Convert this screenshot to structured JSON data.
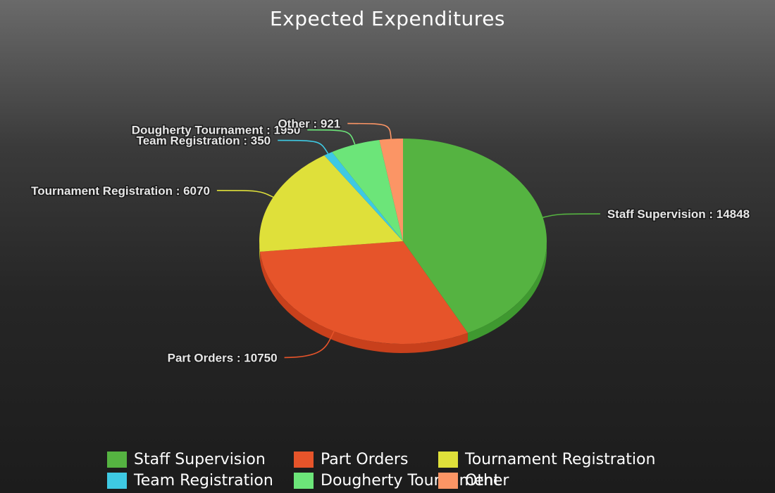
{
  "chart_data": {
    "type": "pie",
    "title": "Expected Expenditures",
    "slices": [
      {
        "name": "Staff Supervision",
        "value": 14848,
        "color": "#55b341",
        "side": "#3f9930",
        "label": "Staff Supervision : 14848"
      },
      {
        "name": "Part Orders",
        "value": 10750,
        "color": "#e6542a",
        "side": "#c8401c",
        "label": "Part Orders : 10750"
      },
      {
        "name": "Tournament Registration",
        "value": 6070,
        "color": "#dfe03a",
        "side": "#b9ba2a",
        "label": "Tournament Registration : 6070"
      },
      {
        "name": "Team Registration",
        "value": 350,
        "color": "#3ec9e3",
        "side": "#2ea8c0",
        "label": "Team Registration : 350"
      },
      {
        "name": "Dougherty Tournament",
        "value": 1950,
        "color": "#6ce579",
        "side": "#53c460",
        "label": "Dougherty Tournament : 1950"
      },
      {
        "name": "Other",
        "value": 921,
        "color": "#fb9565",
        "side": "#dd7a4d",
        "label": "Other : 921"
      }
    ],
    "legend": {
      "placement": "bottom"
    }
  }
}
